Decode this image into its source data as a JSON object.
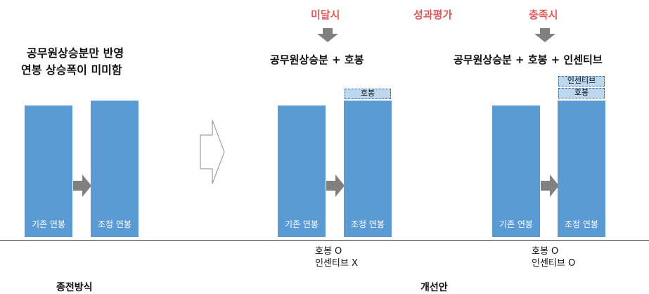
{
  "left": {
    "title_line1": "공무원상승분만 반영",
    "title_line2": "연봉 상승폭이 미미함",
    "bar_before": "기존 연봉",
    "bar_after": "조정 연봉",
    "caption": "종전방식"
  },
  "middle": {
    "condition": "미달시",
    "header": "공무원상승분 + 호봉",
    "bar_before": "기존 연봉",
    "bar_after": "조정 연봉",
    "extra_box": "호봉",
    "note_line1": "호봉 O",
    "note_line2": "인센티브 X"
  },
  "evaluation": "성과평가",
  "right": {
    "condition": "충족시",
    "header": "공무원상승분 + 호봉 + 인센티브",
    "bar_before": "기존 연봉",
    "bar_after": "조정 연봉",
    "extra_box_top": "인센티브",
    "extra_box_bottom": "호봉",
    "note_line1": "호봉 O",
    "note_line2": "인센티브 O"
  },
  "proposal_caption": "개선안",
  "colors": {
    "bar": "#5b9bd5",
    "arrow": "#808080",
    "accent_red": "#e05a5a",
    "dashed_fill": "#bdd7ee"
  }
}
